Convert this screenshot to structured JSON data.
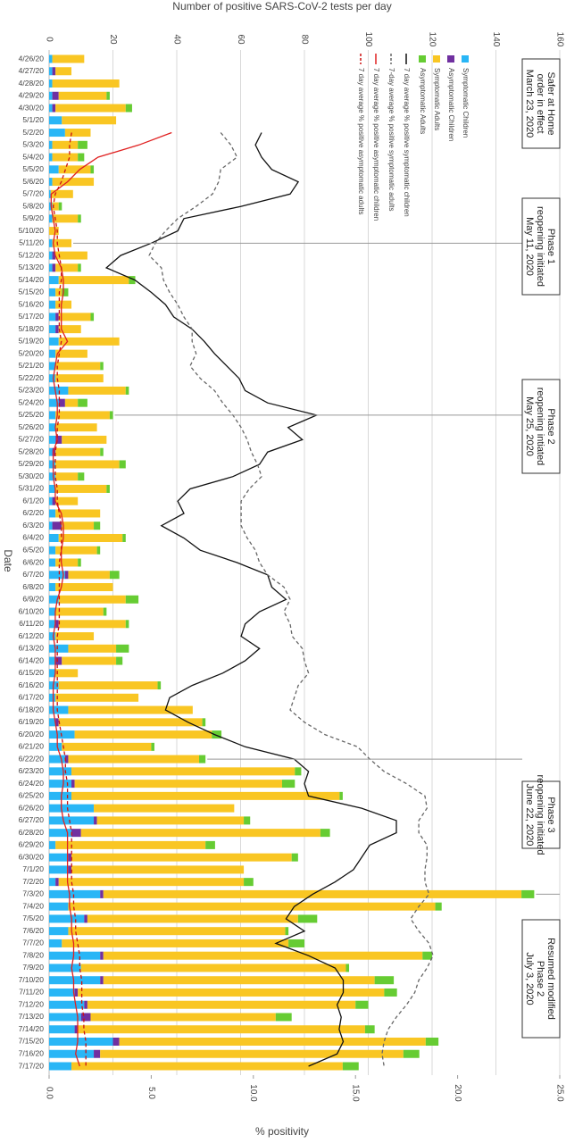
{
  "chart_data": {
    "type": "bar",
    "orientation": "horizontal",
    "stacked": true,
    "title": "Number of positive SARS-CoV-2 tests per day",
    "x2_label": "% positivity",
    "y_label": "Date",
    "grid": true,
    "legend": "top-right",
    "xlim": [
      0,
      160
    ],
    "xticks": [
      0,
      20,
      40,
      60,
      80,
      100,
      120,
      140,
      160
    ],
    "x2lim": [
      0,
      25
    ],
    "x2ticks": [
      {
        "value": 0,
        "label": "0.0"
      },
      {
        "value": 5,
        "label": "5.0"
      },
      {
        "value": 10,
        "label": "10.0"
      },
      {
        "value": 15,
        "label": "15.0"
      },
      {
        "value": 20,
        "label": "20.0"
      },
      {
        "value": 25,
        "label": "25.0"
      }
    ],
    "categories": [
      "4/26/20",
      "4/27/20",
      "4/28/20",
      "4/29/20",
      "4/30/20",
      "5/1/20",
      "5/2/20",
      "5/3/20",
      "5/4/20",
      "5/5/20",
      "5/6/20",
      "5/7/20",
      "5/8/20",
      "5/9/20",
      "5/10/20",
      "5/11/20",
      "5/12/20",
      "5/13/20",
      "5/14/20",
      "5/15/20",
      "5/16/20",
      "5/17/20",
      "5/18/20",
      "5/19/20",
      "5/20/20",
      "5/21/20",
      "5/22/20",
      "5/23/20",
      "5/24/20",
      "5/25/20",
      "5/26/20",
      "5/27/20",
      "5/28/20",
      "5/29/20",
      "5/30/20",
      "5/31/20",
      "6/1/20",
      "6/2/20",
      "6/3/20",
      "6/4/20",
      "6/5/20",
      "6/6/20",
      "6/7/20",
      "6/8/20",
      "6/9/20",
      "6/10/20",
      "6/11/20",
      "6/12/20",
      "6/13/20",
      "6/14/20",
      "6/15/20",
      "6/16/20",
      "6/17/20",
      "6/18/20",
      "6/19/20",
      "6/20/20",
      "6/21/20",
      "6/22/20",
      "6/23/20",
      "6/24/20",
      "6/25/20",
      "6/26/20",
      "6/27/20",
      "6/28/20",
      "6/29/20",
      "6/30/20",
      "7/1/20",
      "7/2/20",
      "7/3/20",
      "7/4/20",
      "7/5/20",
      "7/6/20",
      "7/7/20",
      "7/8/20",
      "7/9/20",
      "7/10/20",
      "7/11/20",
      "7/12/20",
      "7/13/20",
      "7/14/20",
      "7/15/20",
      "7/16/20",
      "7/17/20"
    ],
    "series": [
      {
        "name": "Symptomatic Children",
        "type": "bar",
        "color": "#29b6f6",
        "values": [
          1,
          1,
          1,
          1,
          1,
          4,
          5,
          1,
          1,
          3,
          1,
          0.5,
          1,
          1,
          0,
          1,
          1,
          1,
          3,
          2,
          2,
          2,
          2,
          3,
          2,
          2,
          2,
          6,
          3,
          2,
          2,
          2,
          1,
          2,
          2,
          2,
          1,
          2,
          1,
          3,
          2,
          2,
          5,
          2,
          3,
          2,
          2,
          2,
          6,
          2,
          2,
          3,
          2,
          6,
          2,
          8,
          4,
          5,
          7,
          7,
          7,
          14,
          14,
          7,
          2,
          6,
          6,
          2,
          16,
          6,
          11,
          6,
          4,
          16,
          10,
          16,
          8,
          11,
          10,
          8,
          20,
          14,
          7
        ]
      },
      {
        "name": "Asymptomatic Children",
        "type": "bar",
        "color": "#7030a0",
        "values": [
          0,
          1,
          0,
          2,
          1,
          0,
          0,
          0,
          0,
          0,
          0,
          0,
          0,
          0,
          0,
          0,
          1,
          1,
          0,
          0,
          0,
          1,
          1,
          0,
          0,
          0,
          0,
          0,
          2,
          0,
          0,
          2,
          1,
          0,
          0,
          0,
          1,
          0,
          3,
          0,
          0,
          0,
          1,
          0,
          0,
          0,
          1,
          0,
          0,
          2,
          0,
          0,
          0,
          0,
          1,
          0,
          0,
          1,
          0,
          1,
          0,
          0,
          1,
          3,
          0,
          1,
          1,
          1,
          1,
          0,
          1,
          0,
          0,
          1,
          0,
          1,
          1,
          1,
          3,
          1,
          2,
          2,
          0
        ]
      },
      {
        "name": "Symptomatic Adults",
        "type": "bar",
        "color": "#f9c623",
        "values": [
          10,
          5,
          21,
          15,
          22,
          17,
          8,
          8,
          8,
          10,
          13,
          7,
          2,
          8,
          3,
          6,
          10,
          7,
          22,
          2,
          5,
          10,
          7,
          19,
          10,
          14,
          15,
          18,
          4,
          17,
          13,
          14,
          14,
          20,
          7,
          16,
          7,
          14,
          10,
          20,
          13,
          7,
          13,
          18,
          21,
          15,
          21,
          12,
          15,
          17,
          7,
          31,
          26,
          39,
          45,
          43,
          28,
          41,
          70,
          65,
          84,
          44,
          46,
          75,
          47,
          69,
          54,
          58,
          131,
          115,
          66,
          68,
          71,
          100,
          83,
          85,
          96,
          84,
          58,
          90,
          96,
          95,
          85
        ]
      },
      {
        "name": "Asymptomatic Adults",
        "type": "bar",
        "color": "#66cc33",
        "values": [
          0,
          0,
          0,
          1,
          2,
          0,
          0,
          3,
          2,
          1,
          0,
          0,
          1,
          1,
          0,
          0,
          0,
          1,
          2,
          2,
          0,
          1,
          0,
          0,
          0,
          1,
          0,
          1,
          3,
          1,
          0,
          0,
          1,
          2,
          2,
          1,
          0,
          0,
          2,
          1,
          1,
          1,
          3,
          0,
          4,
          1,
          1,
          0,
          4,
          2,
          0,
          1,
          0,
          0,
          1,
          3,
          1,
          2,
          2,
          4,
          1,
          0,
          2,
          3,
          3,
          2,
          0,
          3,
          4,
          2,
          6,
          1,
          5,
          3,
          1,
          6,
          4,
          4,
          5,
          3,
          4,
          5,
          5
        ]
      },
      {
        "name": "7 day average % positive symptomatic children",
        "type": "line",
        "axis": "x2",
        "color": "#111111",
        "dash": false,
        "values": [
          null,
          null,
          null,
          null,
          null,
          null,
          10.4,
          10.1,
          10.4,
          10.9,
          12.2,
          11.8,
          9.4,
          6.6,
          6.3,
          5.0,
          3.5,
          2.8,
          4.2,
          5.0,
          5.7,
          6.1,
          7.0,
          7.6,
          8.1,
          8.7,
          9.3,
          9.6,
          10.7,
          13.1,
          11.7,
          12.4,
          10.7,
          10.3,
          9.0,
          6.9,
          6.3,
          6.6,
          5.5,
          6.6,
          7.4,
          9.2,
          10.7,
          10.9,
          11.6,
          10.3,
          9.6,
          9.4,
          10.3,
          9.6,
          8.5,
          7.0,
          5.9,
          5.7,
          6.8,
          8.1,
          9.6,
          12.0,
          12.7,
          12.5,
          12.7,
          15.3,
          17.0,
          17.0,
          15.7,
          15.3,
          14.9,
          14.0,
          12.9,
          12.0,
          11.6,
          12.5,
          11.1,
          12.7,
          14.0,
          14.4,
          14.4,
          14.1,
          14.3,
          14.2,
          14.4,
          14.1,
          12.7
        ]
      },
      {
        "name": "7-day average % positive symptomatic adults",
        "type": "line",
        "axis": "x2",
        "color": "#666666",
        "dash": true,
        "values": [
          null,
          null,
          null,
          null,
          null,
          null,
          8.4,
          8.9,
          9.2,
          8.4,
          8.3,
          8.0,
          7.2,
          6.3,
          5.7,
          5.2,
          4.9,
          5.5,
          5.6,
          5.9,
          6.3,
          6.6,
          7.0,
          7.0,
          7.2,
          6.9,
          7.4,
          8.1,
          8.5,
          9.0,
          9.4,
          9.7,
          9.9,
          10.2,
          10.4,
          9.8,
          9.4,
          9.4,
          9.4,
          9.7,
          10.1,
          10.3,
          10.7,
          11.5,
          11.8,
          11.5,
          11.8,
          11.9,
          12.4,
          12.5,
          12.7,
          12.2,
          12.0,
          11.8,
          12.5,
          13.5,
          15.1,
          15.7,
          16.4,
          17.5,
          18.4,
          18.5,
          18.1,
          18.1,
          18.5,
          18.5,
          18.4,
          18.4,
          18.6,
          18.1,
          17.7,
          18.1,
          18.6,
          18.8,
          18.5,
          18.1,
          17.9,
          17.5,
          17.0,
          16.6,
          16.4,
          16.3,
          16.4
        ]
      },
      {
        "name": "7 day average % positive asymptomatic children",
        "type": "line",
        "axis": "x2",
        "color": "#e02020",
        "dash": false,
        "values": [
          null,
          null,
          null,
          null,
          null,
          null,
          6.0,
          4.4,
          2.4,
          1.5,
          0.9,
          0.1,
          0.1,
          0.2,
          0.3,
          0.2,
          0.3,
          0.6,
          0.7,
          0.7,
          0.6,
          0.6,
          0.6,
          0.9,
          0.4,
          0.3,
          0.2,
          0.3,
          0.4,
          0.4,
          0.3,
          0.4,
          0.2,
          0.2,
          0.2,
          0.3,
          0.3,
          0.6,
          0.7,
          0.7,
          0.6,
          0.6,
          0.7,
          0.6,
          0.4,
          0.3,
          0.3,
          0.2,
          0.3,
          0.3,
          0.3,
          0.2,
          0.2,
          0.2,
          0.3,
          0.4,
          0.4,
          0.6,
          0.7,
          0.7,
          0.6,
          0.6,
          0.7,
          0.9,
          0.9,
          0.9,
          0.9,
          0.9,
          1.0,
          1.0,
          1.1,
          1.1,
          1.2,
          1.2,
          1.1,
          1.2,
          1.2,
          1.3,
          1.4,
          1.4,
          1.4,
          1.3,
          1.5
        ]
      },
      {
        "name": "7 day average % positive asymptomatic adults",
        "type": "line",
        "axis": "x2",
        "color": "#cc1111",
        "dash": true,
        "values": [
          null,
          null,
          null,
          null,
          null,
          null,
          1.1,
          1.0,
          1.0,
          0.8,
          0.6,
          0.3,
          0.2,
          0.3,
          0.4,
          0.4,
          0.5,
          0.6,
          0.6,
          0.5,
          0.5,
          0.5,
          0.5,
          0.6,
          0.5,
          0.4,
          0.4,
          0.5,
          0.5,
          0.5,
          0.4,
          0.4,
          0.3,
          0.3,
          0.3,
          0.4,
          0.4,
          0.5,
          0.6,
          0.6,
          0.6,
          0.5,
          0.5,
          0.5,
          0.5,
          0.5,
          0.5,
          0.4,
          0.4,
          0.4,
          0.4,
          0.4,
          0.4,
          0.4,
          0.5,
          0.6,
          0.7,
          0.8,
          0.8,
          0.9,
          0.9,
          0.9,
          1.0,
          1.1,
          1.1,
          1.1,
          1.1,
          1.1,
          1.2,
          1.2,
          1.3,
          1.3,
          1.4,
          1.5,
          1.5,
          1.6,
          1.6,
          1.6,
          1.7,
          1.7,
          1.8,
          1.8,
          1.8
        ]
      }
    ],
    "annotations": [
      {
        "lines": [
          "Safer at Home",
          "order in effect",
          "March 23, 2020"
        ]
      },
      {
        "lines": [
          "Phase 1",
          "reopening initiated",
          "May 11, 2020"
        ],
        "at": "5/11/20"
      },
      {
        "lines": [
          "Phase 2",
          "reopening intiated",
          "May 25, 2020"
        ],
        "at": "5/25/20"
      },
      {
        "lines": [
          "Phase 3",
          "reopening initiated",
          "June 22, 2020"
        ],
        "at": "6/22/20"
      },
      {
        "lines": [
          "Resumed modified",
          "Phase 2",
          "July 3, 2020"
        ],
        "at": "7/3/20"
      }
    ]
  }
}
